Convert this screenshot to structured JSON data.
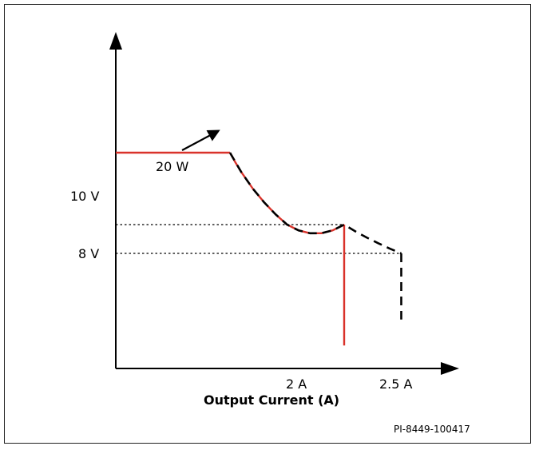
{
  "chart_data": {
    "type": "line",
    "title": "",
    "xlabel": "Output Current (A)",
    "ylabel": "",
    "x_ticks": [
      {
        "value": 2,
        "label": "2 A"
      },
      {
        "value": 2.5,
        "label": "2.5 A"
      }
    ],
    "y_ticks": [
      {
        "value": 10,
        "label": "10 V"
      },
      {
        "value": 8,
        "label": "8 V"
      }
    ],
    "xlim": [
      0,
      2.9
    ],
    "ylim": [
      0,
      17.5
    ],
    "power_limit_w": 20,
    "annotation": "20 W",
    "figure_id": "PI-8449-100417",
    "colors": {
      "red": "#d9322a",
      "black": "#000000"
    },
    "series": [
      {
        "style": "solid-red",
        "segments": [
          [
            [
              0,
              15
            ],
            [
              1,
              15
            ]
          ],
          [
            [
              1,
              15
            ],
            [
              1.05,
              14.29
            ],
            [
              1.1,
              13.64
            ],
            [
              1.2,
              12.5
            ],
            [
              1.3,
              11.54
            ],
            [
              1.4,
              10.71
            ],
            [
              1.5,
              10
            ],
            [
              1.6,
              9.6
            ],
            [
              1.7,
              9.4
            ],
            [
              1.8,
              9.4
            ],
            [
              1.9,
              9.6
            ],
            [
              2,
              10
            ]
          ],
          [
            [
              2,
              10
            ],
            [
              2,
              1.6
            ]
          ]
        ]
      },
      {
        "style": "dashed-black",
        "segments": [
          [
            [
              1,
              15
            ],
            [
              1.1,
              13.64
            ],
            [
              1.2,
              12.5
            ],
            [
              1.3,
              11.54
            ],
            [
              1.4,
              10.71
            ],
            [
              1.5,
              10
            ],
            [
              1.6,
              9.6
            ],
            [
              1.7,
              9.4
            ],
            [
              1.8,
              9.4
            ],
            [
              1.9,
              9.6
            ],
            [
              2,
              10
            ],
            [
              2.1,
              9.52
            ],
            [
              2.2,
              9.09
            ],
            [
              2.3,
              8.7
            ],
            [
              2.4,
              8.33
            ],
            [
              2.5,
              8
            ]
          ],
          [
            [
              2.5,
              8
            ],
            [
              2.5,
              3.4
            ]
          ]
        ]
      },
      {
        "style": "dotted-guide",
        "segments": [
          [
            [
              0,
              10
            ],
            [
              2,
              10
            ]
          ],
          [
            [
              0,
              8
            ],
            [
              2.5,
              8
            ]
          ]
        ]
      }
    ]
  }
}
